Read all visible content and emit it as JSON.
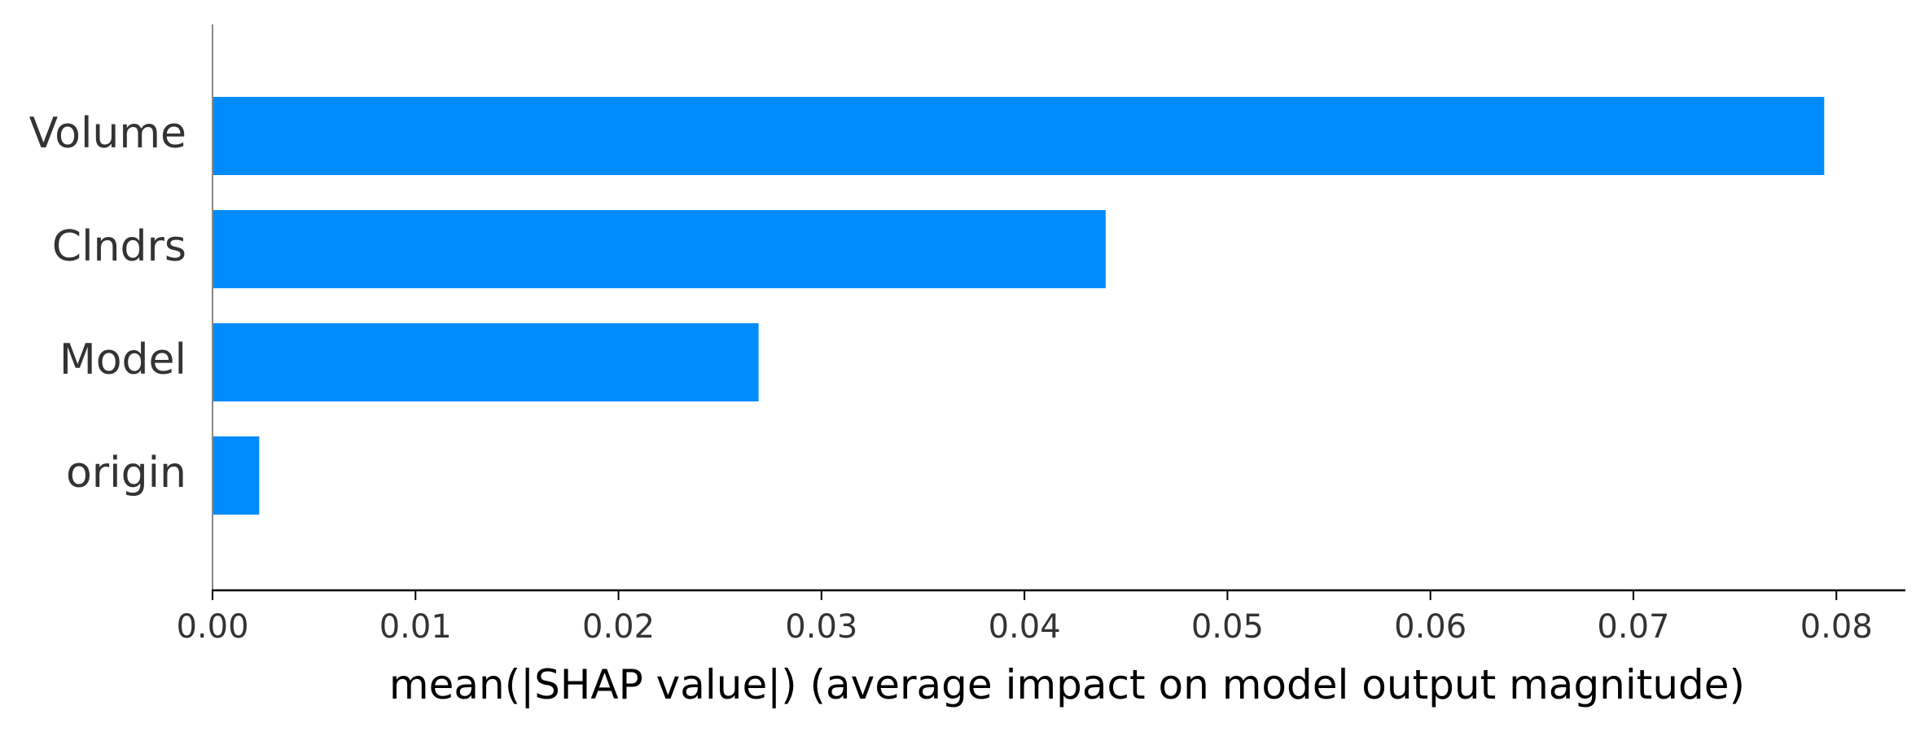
{
  "chart_data": {
    "type": "bar",
    "orientation": "horizontal",
    "categories": [
      "Volume",
      "Clndrs",
      "Model",
      "origin"
    ],
    "values": [
      0.0794,
      0.044,
      0.0269,
      0.0023
    ],
    "title": "",
    "xlabel": "mean(|SHAP value|) (average impact on model output magnitude)",
    "ylabel": "",
    "xlim": [
      0,
      0.0834
    ],
    "xticks": [
      0.0,
      0.01,
      0.02,
      0.03,
      0.04,
      0.05,
      0.06,
      0.07,
      0.08
    ],
    "xtick_labels": [
      "0.00",
      "0.01",
      "0.02",
      "0.03",
      "0.04",
      "0.05",
      "0.06",
      "0.07",
      "0.08"
    ],
    "grid": false,
    "legend": "none",
    "colors": {
      "bar": "#008bfb",
      "axis": "#000000",
      "yaxis": "#888888",
      "text": "#333333"
    }
  }
}
